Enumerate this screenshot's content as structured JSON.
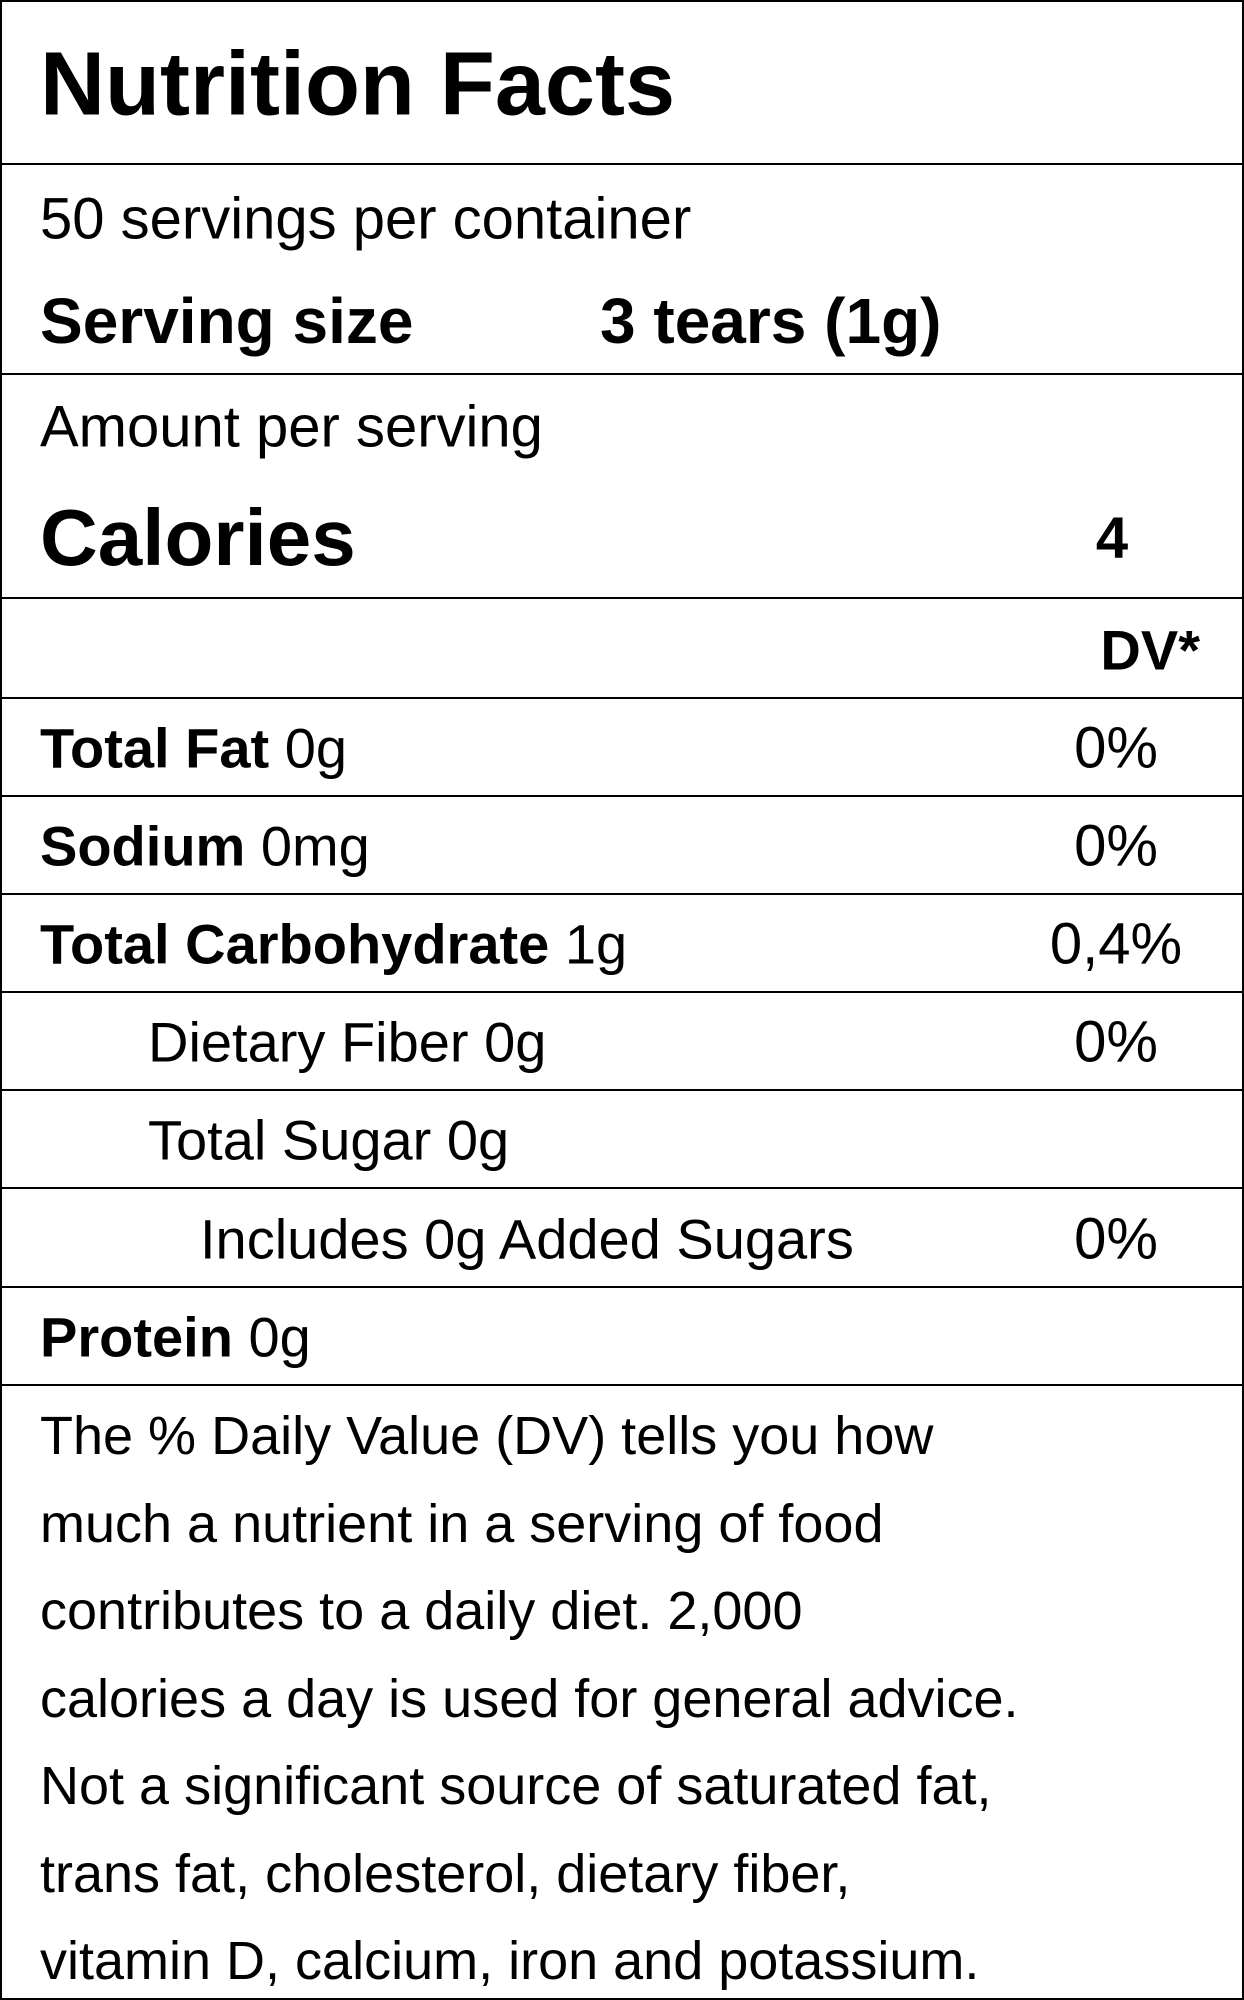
{
  "header": {
    "title": "Nutrition Facts"
  },
  "servings": {
    "per_container": "50 servings per container",
    "size_label": "Serving size",
    "size_value": "3 tears (1g)"
  },
  "calories": {
    "amount_label": "Amount per serving",
    "label": "Calories",
    "value": 4
  },
  "dv_header": "DV*",
  "nutrients": [
    {
      "name": "Total Fat",
      "amount": "0g",
      "dv": "0%"
    },
    {
      "name": "Sodium",
      "amount": "0mg",
      "dv": "0%"
    },
    {
      "name": "Total Carbohydrate",
      "amount": "1g",
      "dv": "0,4%"
    },
    {
      "name": "Dietary Fiber",
      "amount": "0g",
      "dv": "0%"
    },
    {
      "name": "Total Sugar",
      "amount": "0g"
    },
    {
      "name": "Includes 0g Added Sugars",
      "dv": "0%"
    },
    {
      "name": "Protein",
      "amount": "0g"
    }
  ],
  "footnote": [
    "The % Daily Value (DV) tells you how",
    "much a nutrient in a serving of food",
    "contributes to a daily diet. 2,000",
    "calories a day is used for general advice.",
    "Not a significant source of saturated fat,",
    "trans fat, cholesterol, dietary fiber,",
    "vitamin D, calcium, iron and potassium."
  ]
}
